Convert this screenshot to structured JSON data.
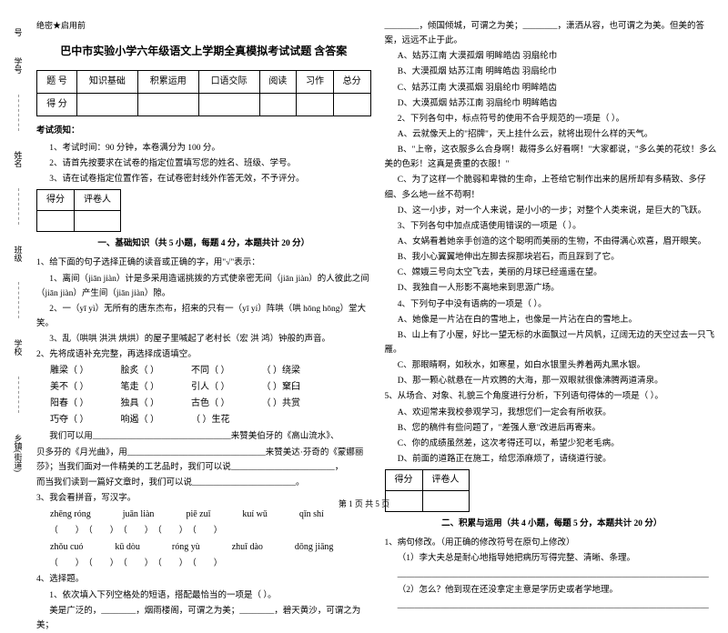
{
  "sidebar": {
    "labels": [
      "号",
      "学号",
      "考",
      "姓名",
      "本",
      "班级",
      "内",
      "学校",
      "线",
      "封",
      "乡镇(街道)",
      "密"
    ]
  },
  "header": {
    "secret": "绝密★启用前",
    "title": "巴中市实验小学六年级语文上学期全真模拟考试试题 含答案"
  },
  "scoreTable": {
    "headers": [
      "题 号",
      "知识基础",
      "积累运用",
      "口语交际",
      "阅读",
      "习作",
      "总分"
    ],
    "row": "得 分"
  },
  "notice": {
    "head": "考试须知：",
    "items": [
      "1、考试时间：90 分钟，本卷满分为 100 分。",
      "2、请首先按要求在试卷的指定位置填写您的姓名、班级、学号。",
      "3、请在试卷指定位置作答，在试卷密封线外作答无效，不予评分。"
    ]
  },
  "miniTable": {
    "c1": "得分",
    "c2": "评卷人"
  },
  "section1": {
    "title": "一、基础知识（共 5 小题，每题 4 分，本题共计 20 分）",
    "q1": {
      "stem": "1、给下面的句子选择正确的读音或正确的字，用\"√\"表示：",
      "l1": "1、离间（jiān  jiàn）计是多采用造谣挑拨的方式使亲密无间（jiān  jiàn）的人彼此之间（jiān  jiàn）产生间（jiān  jiàn）隙。",
      "l2": "2、一（yī  yì）无所有的唐东杰布，招来的只有一（yī  yí）阵哄（哄 hōng hōng）堂大笑。",
      "l3": "3、乱（哄哄  洪洪  烘烘）的屋子里喊起了老村长（宏  洪  鸿）钟般的声音。"
    },
    "q2": {
      "stem": "2、先将成语补充完整，再选择成语填空。",
      "rows": [
        [
          "雕梁（    ）",
          "脍炙（    ）",
          "不同（    ）",
          "（    ）绕梁"
        ],
        [
          "美不（    ）",
          "笔走（    ）",
          "引人（    ）",
          "（    ）窠臼"
        ],
        [
          "阳春（    ）",
          "独具（    ）",
          "古色（    ）",
          "（    ）共赏"
        ],
        [
          "巧夺（    ）",
          "响遏（    ）",
          "（    ）生花",
          ""
        ]
      ],
      "l1": "我们可以用________________________________来赞美伯牙的《高山流水》、",
      "l2": "贝多芬的《月光曲》，用________________________________来赞美达·芬奇的《蒙娜丽莎》；当我们面对一件精美的工艺品时，我们可以说________________________，",
      "l3": "而当我们读到一篇好文章时，我们可以说________________________。"
    },
    "q3": {
      "stem": "3、我会看拼音，写汉字。",
      "py1": [
        "zhēng róng",
        "juān liàn",
        "piē zuǐ",
        "kuí wǔ",
        "qǐn shí"
      ],
      "py2": [
        "zhǒu cuó",
        "kū dòu",
        "róng yù",
        "zhuī dào",
        "dōng jiāng"
      ]
    },
    "q4": {
      "stem": "4、选择题。",
      "l1": "1、依次填入下列空格处的短语，搭配最恰当的一项是（    ）。",
      "l2": "美是广泛的，________，烟雨楼阁，可谓之为美；________，碧天黄沙，可谓之为美；"
    }
  },
  "col2": {
    "top": "________，倾国倾城，可谓之为美；________，潇洒从容，也可谓之为美。但美的答案，远远不止于此。",
    "opts1": [
      "A、姑苏江南    大漠孤烟    明眸皓齿    羽扇纶巾",
      "B、大漠孤烟    姑苏江南    明眸皓齿    羽扇纶巾",
      "C、姑苏江南    大漠孤烟    羽扇纶巾    明眸皓齿",
      "D、大漠孤烟    姑苏江南    羽扇纶巾    明眸皓齿"
    ],
    "l2": "2、下列各句中，标点符号的使用不合乎规范的一项是（       ）。",
    "l3": "A、云就像天上的\"招牌\"，天上挂什么云，就将出现什么样的天气。",
    "l4": "B、\"上帝，这衣服多么合身啊！裁得多么好看啊！\"大家都说，\"多么美的花纹！多么美的色彩！这真是贵重的衣服！\"",
    "l5": "C、为了这样一个脆弱和卑微的生命，上苍给它制作出来的居所却有多精致、多仔细、多么地一丝不苟啊！",
    "l6": "D、这一小步，对一个人来说，是小小的一步；对整个人类来说，是巨大的飞跃。",
    "l7": "3、下列各句中加点成语使用错误的一项是（       ）。",
    "l8": "A、女娲看着她亲手创造的这个聪明而美丽的生物，不由得满心欢喜，眉开眼笑。",
    "l9": "B、我小心翼翼地伸出左脚去探那块岩石，而且踩到了它。",
    "l10": "C、嫦娥三号向太空飞去，美丽的月球已经遥遥在望。",
    "l11": "D、我独自一人形影不离地来到思源广场。",
    "l12": "4、下列句子中没有语病的一项是（       ）。",
    "l13": "A、她像是一片沾在白的雪地上，也像是一片沾在白的雪地上。",
    "l14": "B、山上有了小屋，好比一望无标的水面飘过一片风帆，辽阔无边的天空过去一只飞雁。",
    "l15": "C、那眼睛啊，如秋水，如寒星，如白水银里头养着两丸黑水银。",
    "l16": "D、那一颗心就悬在一片欢腾的大海，那一双眼就很像沸腾两道清泉。",
    "q5": {
      "stem": "5、从场合、对象、礼貌三个角度进行分析，下列语句得体的一项是（    ）。",
      "opts": [
        "A、欢迎常来我校参观学习，我想您们一定会有所收获。",
        "B、您的稿件有些问题了，\"差强人意\"改进后再寄来。",
        "C、你的成绩虽然差，这次考得还可以，希望少犯老毛病。",
        "D、前面的道路正在施工，给您添麻烦了，请绕道行驶。"
      ]
    },
    "section2": {
      "title": "二、积累与运用（共 4 小题，每题 5 分，本题共计 20 分）",
      "q1": {
        "stem": "1、病句修改。（用正确的修改符号在原句上修改）",
        "l1": "（1）李大夫总是耐心地指导她把病历写得完整、清晰、条理。",
        "blank": "________________________________________________________________________",
        "l2": "（2）怎么？他到现在还没拿定主意是学历史或者学地理。",
        "blank2": "________________________________________________________________________"
      }
    }
  },
  "footer": "第 1 页 共 5 页"
}
